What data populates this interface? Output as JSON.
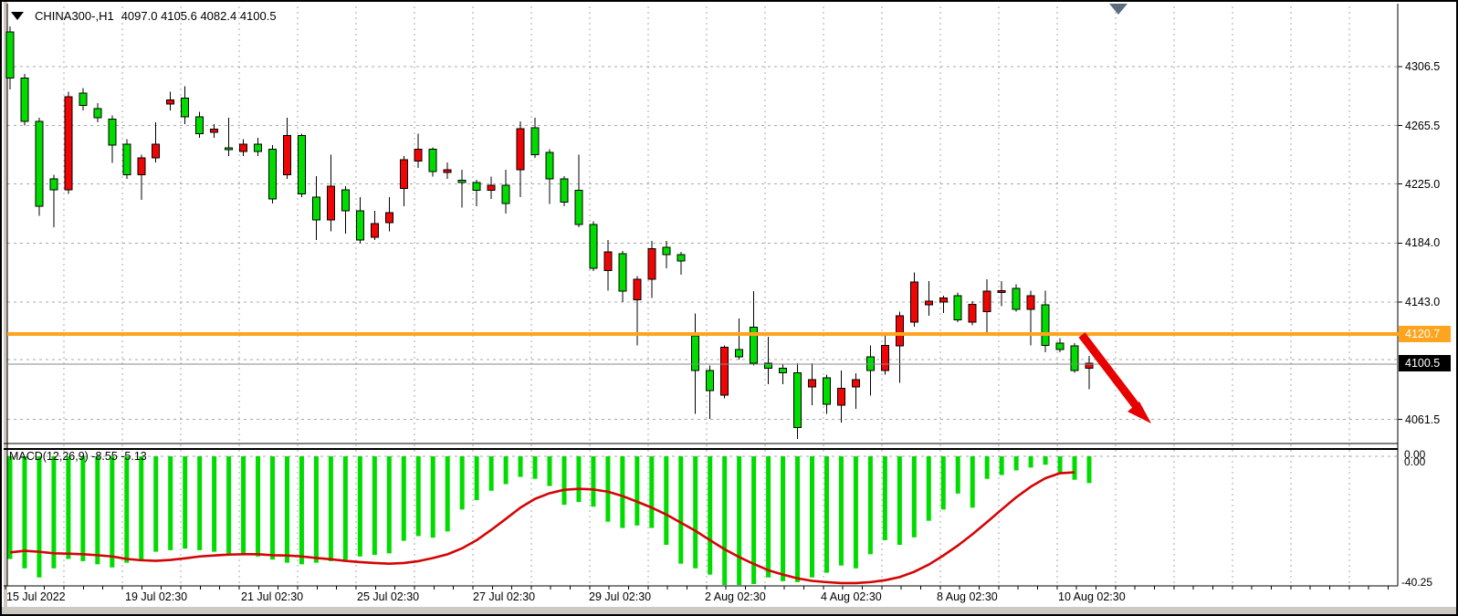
{
  "window": {
    "symbol_title": "CHINA300-,H1",
    "quote_line": "4097.0 4105.6 4082.4 4100.5"
  },
  "colors": {
    "bull_candle": "#00dc00",
    "bear_candle": "#f00505",
    "candle_outline": "#000000",
    "orange_line": "#ffa41e",
    "current_price_badge_bg": "#000000",
    "macd_histogram": "#00dc00",
    "macd_signal": "#d40404",
    "trend_arrow": "#e60000",
    "grid": "#a8a8a8"
  },
  "chart_data": {
    "type": "candlestick",
    "symbol": "CHINA300-",
    "timeframe": "H1",
    "current_bar": {
      "open": 4097.0,
      "high": 4105.6,
      "low": 4082.4,
      "close": 4100.5
    },
    "price_axis": {
      "tick_labels": [
        "4306.5",
        "4265.5",
        "4225.0",
        "4184.0",
        "4143.0",
        "4061.5"
      ],
      "tick_values": [
        4306.5,
        4265.5,
        4225.0,
        4184.0,
        4143.0,
        4061.5
      ],
      "orange_line_price": 4120.7,
      "orange_line_label": "4120.7",
      "current_price": 4100.5,
      "current_price_label": "4100.5"
    },
    "time_axis_labels": [
      "15 Jul 2022",
      "19 Jul 02:30",
      "21 Jul 02:30",
      "25 Jul 02:30",
      "27 Jul 02:30",
      "29 Jul 02:30",
      "2 Aug 02:30",
      "4 Aug 02:30",
      "8 Aug 02:30",
      "10 Aug 02:30"
    ],
    "candles": [
      [
        4298.5,
        4334.5,
        4290.5,
        4330.5
      ],
      [
        4268.5,
        4301.5,
        4265.5,
        4298.5
      ],
      [
        4209.5,
        4271.0,
        4203.0,
        4268.5
      ],
      [
        4221.0,
        4231.5,
        4195.0,
        4228.5
      ],
      [
        4285.5,
        4289.0,
        4218.0,
        4221.0
      ],
      [
        4279.5,
        4291.5,
        4276.0,
        4288.0
      ],
      [
        4271.0,
        4281.0,
        4268.0,
        4277.5
      ],
      [
        4252.0,
        4272.5,
        4239.5,
        4270.0
      ],
      [
        4231.5,
        4256.0,
        4228.5,
        4252.5
      ],
      [
        4243.0,
        4245.5,
        4214.0,
        4231.5
      ],
      [
        4252.5,
        4268.0,
        4240.0,
        4243.0
      ],
      [
        4283.5,
        4289.0,
        4276.0,
        4280.5
      ],
      [
        4271.5,
        4293.0,
        4266.5,
        4284.5
      ],
      [
        4260.0,
        4275.0,
        4257.0,
        4271.5
      ],
      [
        4263.0,
        4266.5,
        4257.0,
        4261.0
      ],
      [
        4249.0,
        4271.0,
        4244.5,
        4250.0
      ],
      [
        4252.5,
        4256.0,
        4244.5,
        4247.5
      ],
      [
        4247.5,
        4257.0,
        4244.5,
        4252.5
      ],
      [
        4214.5,
        4252.0,
        4211.5,
        4249.0
      ],
      [
        4258.5,
        4271.0,
        4228.5,
        4231.5
      ],
      [
        4218.0,
        4260.0,
        4216.0,
        4258.5
      ],
      [
        4200.0,
        4230.5,
        4186.0,
        4216.0
      ],
      [
        4223.5,
        4245.5,
        4192.0,
        4200.0
      ],
      [
        4206.5,
        4223.5,
        4190.5,
        4221.0
      ],
      [
        4186.0,
        4216.0,
        4184.0,
        4206.5
      ],
      [
        4197.5,
        4206.5,
        4186.0,
        4188.0
      ],
      [
        4205.0,
        4216.0,
        4192.0,
        4198.0
      ],
      [
        4242.0,
        4244.5,
        4209.5,
        4222.0
      ],
      [
        4249.0,
        4260.0,
        4236.0,
        4241.0
      ],
      [
        4233.5,
        4250.5,
        4230.0,
        4249.0
      ],
      [
        4235.0,
        4240.0,
        4228.5,
        4233.0
      ],
      [
        4226.0,
        4235.0,
        4208.5,
        4227.5
      ],
      [
        4220.5,
        4228.0,
        4209.5,
        4226.0
      ],
      [
        4224.0,
        4230.0,
        4214.5,
        4220.5
      ],
      [
        4211.5,
        4235.0,
        4204.5,
        4224.0
      ],
      [
        4263.5,
        4268.5,
        4216.0,
        4235.0
      ],
      [
        4245.5,
        4271.0,
        4243.0,
        4264.0
      ],
      [
        4228.5,
        4249.0,
        4211.0,
        4247.0
      ],
      [
        4212.5,
        4230.5,
        4209.5,
        4228.5
      ],
      [
        4197.0,
        4245.5,
        4195.0,
        4220.5
      ],
      [
        4166.5,
        4199.0,
        4164.5,
        4197.0
      ],
      [
        4178.0,
        4186.0,
        4151.0,
        4165.0
      ],
      [
        4150.5,
        4178.5,
        4143.0,
        4176.5
      ],
      [
        4159.0,
        4161.0,
        4113.0,
        4144.5
      ],
      [
        4180.0,
        4185.5,
        4146.0,
        4159.0
      ],
      [
        4176.0,
        4185.5,
        4166.5,
        4181.0
      ],
      [
        4171.5,
        4178.0,
        4162.0,
        4176.0
      ],
      [
        4095.5,
        4135.0,
        4065.5,
        4119.5
      ],
      [
        4081.5,
        4099.0,
        4062.0,
        4095.5
      ],
      [
        4111.5,
        4113.0,
        4076.0,
        4078.5
      ],
      [
        4105.0,
        4131.5,
        4103.0,
        4110.0
      ],
      [
        4100.5,
        4150.5,
        4099.0,
        4125.5
      ],
      [
        4097.0,
        4119.0,
        4086.0,
        4100.5
      ],
      [
        4094.0,
        4100.0,
        4086.0,
        4097.0
      ],
      [
        4056.0,
        4100.5,
        4048.0,
        4094.0
      ],
      [
        4089.0,
        4100.5,
        4071.5,
        4084.0
      ],
      [
        4072.0,
        4092.5,
        4065.5,
        4090.5
      ],
      [
        4083.0,
        4095.5,
        4059.5,
        4071.5
      ],
      [
        4089.0,
        4093.5,
        4069.0,
        4084.0
      ],
      [
        4095.5,
        4113.0,
        4078.0,
        4105.0
      ],
      [
        4113.0,
        4121.0,
        4092.5,
        4095.5
      ],
      [
        4133.5,
        4136.5,
        4087.0,
        4112.5
      ],
      [
        4157.0,
        4163.5,
        4126.0,
        4129.0
      ],
      [
        4143.5,
        4157.5,
        4133.5,
        4141.0
      ],
      [
        4146.0,
        4147.5,
        4135.5,
        4143.0
      ],
      [
        4130.5,
        4149.5,
        4129.0,
        4147.5
      ],
      [
        4141.5,
        4143.5,
        4127.0,
        4129.0
      ],
      [
        4150.5,
        4159.0,
        4122.0,
        4136.5
      ],
      [
        4151.0,
        4157.5,
        4140.0,
        4149.5
      ],
      [
        4138.0,
        4155.5,
        4136.5,
        4152.5
      ],
      [
        4147.5,
        4151.0,
        4113.0,
        4138.0
      ],
      [
        4113.0,
        4151.0,
        4108.0,
        4141.0
      ],
      [
        4110.0,
        4118.0,
        4108.0,
        4114.5
      ],
      [
        4095.5,
        4114.5,
        4094.0,
        4112.5
      ],
      [
        4100.5,
        4105.6,
        4082.4,
        4097.0
      ]
    ],
    "macd": {
      "label": "MACD(12,26,9) -8.55 -5.13",
      "indicator_name": "MACD(12,26,9)",
      "macd_value": -8.55,
      "signal_value": -5.13,
      "zero_label": "0.00",
      "zero_label_2": "0.00",
      "min_label": "-40.25",
      "histogram": [
        -32.8,
        -35.8,
        -38.7,
        -35.8,
        -32.8,
        -33.5,
        -34.5,
        -35.5,
        -34.0,
        -33.5,
        -30.5,
        -30.0,
        -29.5,
        -30.0,
        -30.5,
        -31.0,
        -31.5,
        -32.0,
        -33.0,
        -34.0,
        -34.5,
        -34.0,
        -33.5,
        -33.0,
        -32.0,
        -31.5,
        -31.0,
        -27.0,
        -25.5,
        -26.0,
        -24.0,
        -17.0,
        -14.0,
        -11.0,
        -8.9,
        -6.6,
        -7.2,
        -9.5,
        -15.5,
        -14.6,
        -16.1,
        -20.9,
        -22.9,
        -22.1,
        -22.9,
        -28.3,
        -34.3,
        -35.8,
        -37.8,
        -42.3,
        -41.4,
        -40.8,
        -38.7,
        -39.9,
        -40.2,
        -38.7,
        -37.2,
        -34.9,
        -35.8,
        -31.3,
        -26.8,
        -28.3,
        -25.9,
        -20.6,
        -17.0,
        -11.9,
        -16.4,
        -7.2,
        -6.0,
        -4.5,
        -3.6,
        -2.7,
        -5.1,
        -7.5,
        -8.55
      ],
      "signal": [
        -30.7,
        -30.2,
        -30.5,
        -31.0,
        -31.1,
        -31.3,
        -31.6,
        -32.0,
        -32.8,
        -33.2,
        -33.4,
        -33.1,
        -32.6,
        -32.0,
        -31.7,
        -31.4,
        -31.3,
        -31.3,
        -31.6,
        -31.7,
        -32.0,
        -32.5,
        -32.9,
        -33.4,
        -33.8,
        -34.1,
        -34.3,
        -34.1,
        -33.5,
        -32.5,
        -31.3,
        -29.4,
        -26.8,
        -23.5,
        -20.0,
        -16.4,
        -13.6,
        -11.8,
        -10.7,
        -10.4,
        -10.6,
        -11.3,
        -12.7,
        -14.5,
        -16.4,
        -18.6,
        -21.2,
        -23.8,
        -26.8,
        -29.7,
        -32.2,
        -34.4,
        -36.4,
        -37.8,
        -39.0,
        -39.8,
        -40.2,
        -40.5,
        -40.5,
        -40.2,
        -39.6,
        -38.6,
        -36.9,
        -34.6,
        -31.7,
        -28.5,
        -24.9,
        -21.0,
        -17.0,
        -13.1,
        -9.7,
        -7.0,
        -5.4,
        -5.13
      ]
    },
    "annotations": {
      "down_arrow": "red diagonal arrow pointing down-right after price breaks below 4120.7",
      "top_marker": "gray down-pointing marker above last candles"
    }
  }
}
